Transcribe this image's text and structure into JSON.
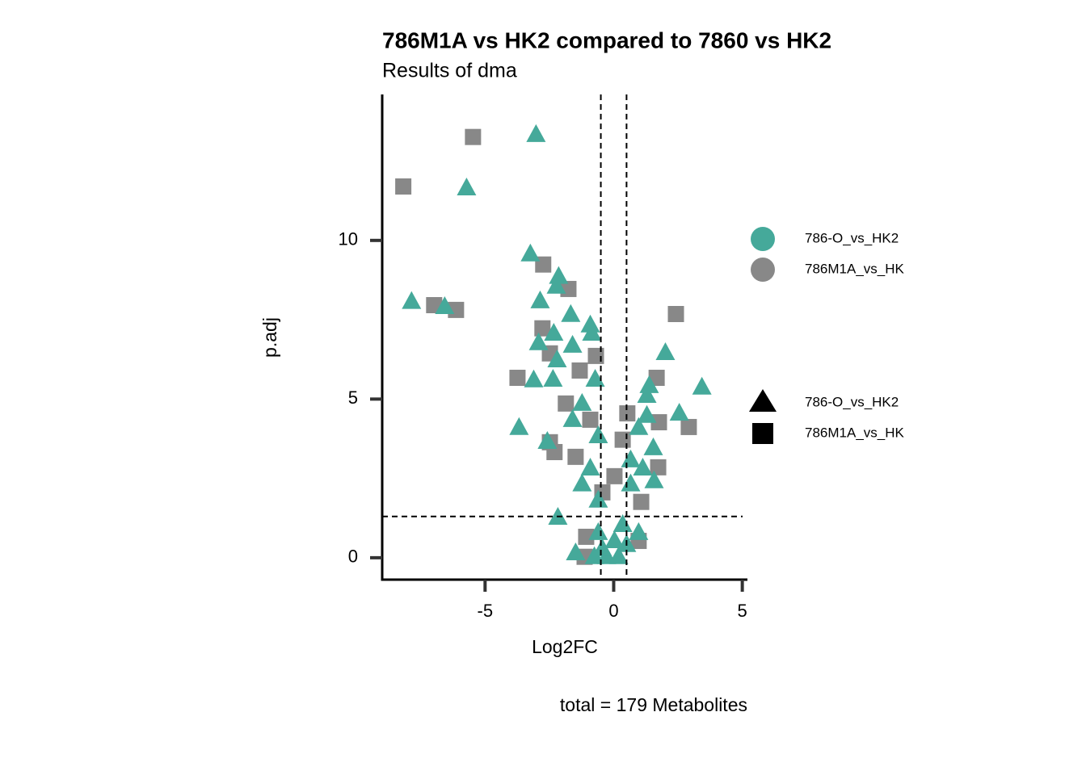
{
  "chart_data": {
    "type": "scatter",
    "title": "786M1A vs HK2 compared to 7860 vs HK2",
    "subtitle": "Results of dma",
    "x_label": "Log2FC",
    "y_label": "p.adj",
    "caption": "total = 179 Metabolites",
    "xlim": [
      -9.0,
      5.2
    ],
    "ylim": [
      -0.69,
      14.6
    ],
    "xticks": [
      -5,
      0,
      5
    ],
    "yticks": [
      0,
      5,
      10
    ],
    "vlines": [
      -0.5,
      0.5
    ],
    "hline": 1.3,
    "series": [
      {
        "name": "786M1A_vs_HK",
        "color": "#888888",
        "shape": "square",
        "x": [
          -5.47,
          -8.18,
          -2.74,
          -1.76,
          -6.98,
          -6.13,
          2.42,
          -2.77,
          -0.69,
          -3.74,
          -2.48,
          -1.32,
          1.67,
          0.53,
          1.76,
          2.92,
          -2.48,
          -2.3,
          -1.48,
          1.73,
          1.07,
          -1.07,
          -1.13,
          0.35,
          -0.44,
          0.97,
          0.03,
          -1.86,
          -0.91
        ],
        "values": [
          13.26,
          11.7,
          9.24,
          8.47,
          7.96,
          7.81,
          7.68,
          7.23,
          6.36,
          5.67,
          6.44,
          5.9,
          5.67,
          4.55,
          4.27,
          4.12,
          3.64,
          3.33,
          3.18,
          2.85,
          1.76,
          0.66,
          0.03,
          3.72,
          2.06,
          0.53,
          2.57,
          4.86,
          4.35
        ]
      },
      {
        "name": "786-O_vs_HK2",
        "color": "#45a99a",
        "shape": "triangle",
        "x": [
          -3.02,
          -5.72,
          -3.24,
          -2.14,
          -2.23,
          -7.86,
          -6.57,
          -2.86,
          -1.67,
          -0.91,
          -0.85,
          -2.33,
          -2.92,
          -1.6,
          2.01,
          -2.2,
          3.43,
          -3.11,
          -2.36,
          -0.72,
          1.38,
          1.29,
          2.55,
          -3.68,
          -2.58,
          -1.23,
          -1.6,
          -0.6,
          1.29,
          0.97,
          1.54,
          1.57,
          0.66,
          -0.91,
          -1.23,
          -0.6,
          -2.17,
          -1.48,
          -0.6,
          0.03,
          -0.28,
          0.35,
          0.97,
          0.66,
          1.13,
          -0.44,
          0.19,
          0.5,
          -0.75
        ],
        "values": [
          13.33,
          11.65,
          9.57,
          8.86,
          8.55,
          8.07,
          7.91,
          8.09,
          7.66,
          7.33,
          7.07,
          7.07,
          6.77,
          6.69,
          6.46,
          6.23,
          5.37,
          5.6,
          5.62,
          5.62,
          5.42,
          5.11,
          4.55,
          4.1,
          3.66,
          4.86,
          4.35,
          3.84,
          4.48,
          4.1,
          3.46,
          2.42,
          3.08,
          2.82,
          2.32,
          1.81,
          1.27,
          0.15,
          0.79,
          0.53,
          0.03,
          1.04,
          0.79,
          2.32,
          2.82,
          0.28,
          0.03,
          0.41,
          0.03
        ]
      }
    ],
    "color_legend": [
      "786-O_vs_HK2",
      "786M1A_vs_HK"
    ],
    "shape_legend": [
      "786-O_vs_HK2",
      "786M1A_vs_HK"
    ]
  }
}
